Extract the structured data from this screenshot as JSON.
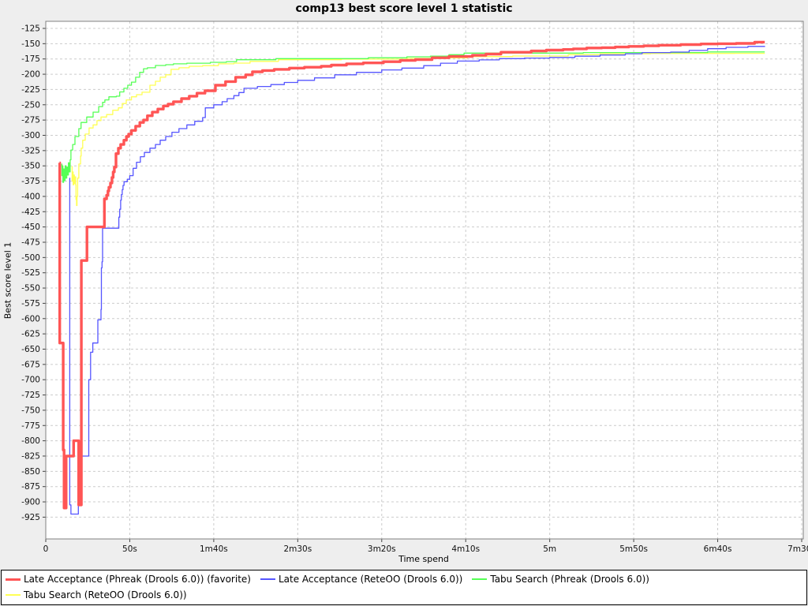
{
  "title": "comp13 best score level 1 statistic",
  "axes": {
    "x_label": "Time spend",
    "y_label": "Best score level 1"
  },
  "colors": {
    "page_background": "#eeeeee",
    "plot_background": "#ffffff",
    "plot_border": "#808080",
    "gridline": "#cccccc",
    "tick": "#444444",
    "series_red": "#ff5555",
    "series_blue": "#5555ff",
    "series_green": "#55ff55",
    "series_yellow": "#ffff55"
  },
  "legend": {
    "items": [
      {
        "label": "Late Acceptance (Phreak (Drools 6.0)) (favorite)",
        "color": "#ff5555",
        "thickness": 3
      },
      {
        "label": "Late Acceptance (ReteOO (Drools 6.0))",
        "color": "#5555ff",
        "thickness": 2
      },
      {
        "label": "Tabu Search (Phreak (Drools 6.0))",
        "color": "#55ff55",
        "thickness": 2
      },
      {
        "label": "Tabu Search (ReteOO (Drools 6.0))",
        "color": "#ffff55",
        "thickness": 2
      }
    ]
  },
  "chart_data": {
    "type": "line",
    "title": "comp13 best score level 1 statistic",
    "xlabel": "Time spend",
    "ylabel": "Best score level 1",
    "x_unit": "seconds",
    "xlim": [
      0,
      450
    ],
    "ylim": [
      -925,
      -125
    ],
    "y_tick_step": 25,
    "grid": "dashed",
    "legend_position": "bottom",
    "x_ticks": [
      {
        "t": 0,
        "label": "0"
      },
      {
        "t": 50,
        "label": "50s"
      },
      {
        "t": 100,
        "label": "1m40s"
      },
      {
        "t": 150,
        "label": "2m30s"
      },
      {
        "t": 200,
        "label": "3m20s"
      },
      {
        "t": 250,
        "label": "4m10s"
      },
      {
        "t": 300,
        "label": "5m"
      },
      {
        "t": 350,
        "label": "5m50s"
      },
      {
        "t": 400,
        "label": "6m40s"
      },
      {
        "t": 450,
        "label": "7m30s"
      }
    ],
    "series": [
      {
        "name": "Tabu Search (ReteOO (Drools 6.0))",
        "key": "tabu-search-reteoo",
        "color": "#ffff55",
        "stroke_width": 1.3,
        "points": [
          [
            15.5,
            -351
          ],
          [
            15.7,
            -375
          ],
          [
            16,
            -360
          ],
          [
            16.3,
            -381
          ],
          [
            16.6,
            -365
          ],
          [
            17,
            -379
          ],
          [
            17.4,
            -368
          ],
          [
            17.8,
            -381
          ],
          [
            18,
            -405
          ],
          [
            18.3,
            -415
          ],
          [
            18.6,
            -400
          ],
          [
            19,
            -370
          ],
          [
            19.7,
            -347
          ],
          [
            20.7,
            -334
          ],
          [
            21.1,
            -321
          ],
          [
            22,
            -308
          ],
          [
            23.5,
            -298
          ],
          [
            25.8,
            -288
          ],
          [
            28.2,
            -283
          ],
          [
            30.5,
            -276
          ],
          [
            32.9,
            -270
          ],
          [
            36.2,
            -266
          ],
          [
            39.9,
            -259
          ],
          [
            43.2,
            -255
          ],
          [
            45.5,
            -248
          ],
          [
            47.9,
            -242
          ],
          [
            51,
            -237
          ],
          [
            54,
            -233.5
          ],
          [
            57.3,
            -229.5
          ],
          [
            62,
            -218
          ],
          [
            65.3,
            -211.5
          ],
          [
            68.1,
            -205
          ],
          [
            71.4,
            -201
          ],
          [
            74.6,
            -192
          ],
          [
            79.3,
            -189.5
          ],
          [
            85.4,
            -187
          ],
          [
            93.4,
            -186
          ],
          [
            102.8,
            -183
          ],
          [
            112,
            -181.8
          ],
          [
            121.6,
            -179
          ],
          [
            138.5,
            -176.3
          ],
          [
            176,
            -175.4
          ],
          [
            215,
            -174.1
          ],
          [
            229.6,
            -173.2
          ],
          [
            251,
            -171.1
          ],
          [
            278,
            -170.2
          ],
          [
            311,
            -168
          ],
          [
            330,
            -166.5
          ],
          [
            360,
            -166
          ],
          [
            410,
            -165.8
          ],
          [
            428,
            -165.8
          ]
        ]
      },
      {
        "name": "Tabu Search (Phreak (Drools 6.0))",
        "key": "tabu-search-phreak",
        "color": "#55ff55",
        "stroke_width": 1.3,
        "points": [
          [
            9.4,
            -347
          ],
          [
            9.6,
            -366
          ],
          [
            9.8,
            -350
          ],
          [
            10.2,
            -377
          ],
          [
            10.6,
            -355
          ],
          [
            11,
            -374
          ],
          [
            11.5,
            -350
          ],
          [
            12,
            -370
          ],
          [
            12.5,
            -352
          ],
          [
            13,
            -365
          ],
          [
            13.5,
            -345
          ],
          [
            14,
            -360
          ],
          [
            14.5,
            -340
          ],
          [
            15,
            -324
          ],
          [
            16,
            -315
          ],
          [
            17.4,
            -302
          ],
          [
            19.7,
            -289
          ],
          [
            21,
            -279
          ],
          [
            24.4,
            -270
          ],
          [
            28.2,
            -262
          ],
          [
            31.5,
            -253
          ],
          [
            33.8,
            -246
          ],
          [
            35.2,
            -242
          ],
          [
            37.6,
            -237
          ],
          [
            42,
            -236
          ],
          [
            44,
            -229
          ],
          [
            46.5,
            -223
          ],
          [
            48.8,
            -218
          ],
          [
            51,
            -213
          ],
          [
            53.5,
            -205
          ],
          [
            55.9,
            -197
          ],
          [
            58.2,
            -191
          ],
          [
            60.5,
            -189.5
          ],
          [
            65.3,
            -185.7
          ],
          [
            71.4,
            -184.4
          ],
          [
            76,
            -183
          ],
          [
            84,
            -182
          ],
          [
            98,
            -180.6
          ],
          [
            107.5,
            -179.4
          ],
          [
            113.6,
            -176.3
          ],
          [
            137,
            -174.5
          ],
          [
            192,
            -173
          ],
          [
            215,
            -171.5
          ],
          [
            229,
            -170.3
          ],
          [
            240,
            -168
          ],
          [
            249,
            -165.4
          ],
          [
            320,
            -164.5
          ],
          [
            394,
            -163.5
          ],
          [
            428,
            -163.5
          ]
        ]
      },
      {
        "name": "Late Acceptance (ReteOO (Drools 6.0))",
        "key": "late-acceptance-reteoo",
        "color": "#5555ff",
        "stroke_width": 1.3,
        "points": [
          [
            14.2,
            -370
          ],
          [
            14.3,
            -905
          ],
          [
            14.9,
            -905
          ],
          [
            15,
            -920
          ],
          [
            19.2,
            -920
          ],
          [
            19.4,
            -825
          ],
          [
            25.4,
            -825
          ],
          [
            25.6,
            -700
          ],
          [
            26.5,
            -700
          ],
          [
            26.7,
            -655
          ],
          [
            28,
            -640
          ],
          [
            30.5,
            -640
          ],
          [
            31,
            -602
          ],
          [
            32.9,
            -585
          ],
          [
            33.1,
            -517
          ],
          [
            33.5,
            -507
          ],
          [
            33.8,
            -452
          ],
          [
            43.2,
            -452
          ],
          [
            43.5,
            -434
          ],
          [
            44,
            -421
          ],
          [
            44.6,
            -406
          ],
          [
            45,
            -397
          ],
          [
            45.5,
            -389
          ],
          [
            46,
            -382
          ],
          [
            46.6,
            -376
          ],
          [
            48.5,
            -372
          ],
          [
            50,
            -366
          ],
          [
            52,
            -354
          ],
          [
            54,
            -344
          ],
          [
            56.3,
            -335
          ],
          [
            58.7,
            -328
          ],
          [
            62,
            -321
          ],
          [
            65.3,
            -315
          ],
          [
            68.1,
            -308
          ],
          [
            71.4,
            -302
          ],
          [
            75.1,
            -295
          ],
          [
            79.3,
            -289
          ],
          [
            84,
            -283
          ],
          [
            88.7,
            -277
          ],
          [
            93.4,
            -271
          ],
          [
            95,
            -255
          ],
          [
            100,
            -250
          ],
          [
            105,
            -245
          ],
          [
            108,
            -240
          ],
          [
            112,
            -235
          ],
          [
            115,
            -230
          ],
          [
            118,
            -223
          ],
          [
            126,
            -220
          ],
          [
            134,
            -217
          ],
          [
            142,
            -213.5
          ],
          [
            150,
            -210
          ],
          [
            160,
            -206
          ],
          [
            172,
            -201
          ],
          [
            185,
            -197
          ],
          [
            200,
            -193
          ],
          [
            212,
            -190
          ],
          [
            225,
            -186
          ],
          [
            235,
            -182
          ],
          [
            245,
            -178.5
          ],
          [
            258,
            -176.5
          ],
          [
            270,
            -174.5
          ],
          [
            285,
            -173.5
          ],
          [
            300,
            -172.5
          ],
          [
            315,
            -170.5
          ],
          [
            330,
            -168.5
          ],
          [
            345,
            -166.5
          ],
          [
            355,
            -164.5
          ],
          [
            372,
            -163.8
          ],
          [
            383,
            -161
          ],
          [
            394,
            -158.2
          ],
          [
            405,
            -156
          ],
          [
            418,
            -154.5
          ],
          [
            428,
            -154
          ]
        ]
      },
      {
        "name": "Late Acceptance (Phreak (Drools 6.0)) (favorite)",
        "key": "late-acceptance-phreak",
        "color": "#ff5555",
        "stroke_width": 3.4,
        "points": [
          [
            8.2,
            -345
          ],
          [
            8.3,
            -640
          ],
          [
            10.3,
            -640
          ],
          [
            10.4,
            -815
          ],
          [
            10.8,
            -815
          ],
          [
            10.9,
            -910
          ],
          [
            12,
            -910
          ],
          [
            12.1,
            -825
          ],
          [
            16.5,
            -825
          ],
          [
            16.6,
            -800
          ],
          [
            19.4,
            -800
          ],
          [
            19.6,
            -905
          ],
          [
            21,
            -905
          ],
          [
            21.2,
            -505
          ],
          [
            24.4,
            -505
          ],
          [
            24.5,
            -450
          ],
          [
            33.8,
            -450
          ],
          [
            34.9,
            -404
          ],
          [
            36.2,
            -398
          ],
          [
            37,
            -391
          ],
          [
            37.6,
            -385
          ],
          [
            38.5,
            -378
          ],
          [
            39.4,
            -369
          ],
          [
            40.1,
            -360
          ],
          [
            40.8,
            -352
          ],
          [
            41.8,
            -330
          ],
          [
            43.2,
            -321
          ],
          [
            44.6,
            -315
          ],
          [
            46.5,
            -308
          ],
          [
            48,
            -302
          ],
          [
            49.3,
            -298
          ],
          [
            51,
            -292
          ],
          [
            53.5,
            -285
          ],
          [
            56,
            -279
          ],
          [
            58.2,
            -275
          ],
          [
            60.5,
            -268
          ],
          [
            63.4,
            -262
          ],
          [
            66.7,
            -257
          ],
          [
            70,
            -252
          ],
          [
            72.8,
            -249
          ],
          [
            76,
            -245
          ],
          [
            80.8,
            -240
          ],
          [
            85.4,
            -236
          ],
          [
            90,
            -231
          ],
          [
            94.8,
            -227
          ],
          [
            101,
            -218
          ],
          [
            107,
            -212
          ],
          [
            113,
            -205
          ],
          [
            119,
            -201
          ],
          [
            123,
            -196
          ],
          [
            129,
            -194
          ],
          [
            136,
            -192
          ],
          [
            145,
            -190
          ],
          [
            154,
            -188.5
          ],
          [
            164,
            -187
          ],
          [
            170,
            -185
          ],
          [
            179,
            -183
          ],
          [
            189,
            -181.5
          ],
          [
            201,
            -179.5
          ],
          [
            211,
            -177.5
          ],
          [
            220,
            -176
          ],
          [
            230,
            -173
          ],
          [
            240,
            -171
          ],
          [
            254,
            -169
          ],
          [
            262,
            -167
          ],
          [
            271,
            -164
          ],
          [
            289,
            -162
          ],
          [
            298,
            -160.5
          ],
          [
            308,
            -159.5
          ],
          [
            314,
            -158.5
          ],
          [
            322,
            -157
          ],
          [
            331,
            -156.5
          ],
          [
            339,
            -155.5
          ],
          [
            347,
            -154.5
          ],
          [
            356,
            -153.5
          ],
          [
            365,
            -152.5
          ],
          [
            378,
            -151.5
          ],
          [
            390,
            -150.5
          ],
          [
            400,
            -150
          ],
          [
            411,
            -149.5
          ],
          [
            422,
            -147.5
          ],
          [
            428,
            -147.5
          ]
        ]
      }
    ]
  }
}
